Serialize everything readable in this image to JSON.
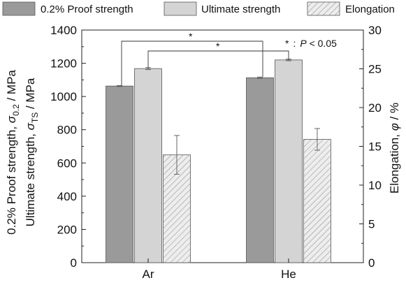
{
  "chart_data": {
    "type": "bar",
    "categories": [
      "Ar",
      "He"
    ],
    "series": [
      {
        "name": "0.2% Proof strength",
        "axis": "left",
        "values": [
          1063,
          1113
        ],
        "errors": [
          3,
          4
        ],
        "color": "#9a9a9a",
        "pattern": "solid"
      },
      {
        "name": "Ultimate strength",
        "axis": "left",
        "values": [
          1168,
          1220
        ],
        "errors": [
          6,
          5
        ],
        "color": "#d4d4d4",
        "pattern": "solid"
      },
      {
        "name": "Elongation",
        "axis": "right",
        "values": [
          13.9,
          15.9
        ],
        "errors": [
          2.5,
          1.4
        ],
        "color": "#ececec",
        "pattern": "hatch"
      }
    ],
    "ylim": [
      0,
      1400
    ],
    "y2lim": [
      0,
      30
    ],
    "yticks": [
      0,
      200,
      400,
      600,
      800,
      1000,
      1200,
      1400
    ],
    "y2ticks": [
      0,
      5,
      10,
      15,
      20,
      25,
      30
    ],
    "ylabel": {
      "line1_prefix": "0.2% Proof strength, ",
      "line1_symbol": "σ",
      "line1_sub": "0.2",
      "line1_suffix": " / MPa",
      "line2_prefix": "Ultimate strength, ",
      "line2_symbol": "σ",
      "line2_sub": "TS",
      "line2_suffix": " / MPa"
    },
    "y2label": {
      "prefix": "Elongation, ",
      "symbol": "φ",
      "suffix": " / %"
    },
    "significance": [
      {
        "series": "0.2% Proof strength",
        "marker": "*"
      },
      {
        "series": "Ultimate strength",
        "marker": "*"
      }
    ],
    "annotation": {
      "star": "*",
      "sep": ":",
      "p_symbol": "P",
      "rest": " < 0.05"
    },
    "legend_position": "top",
    "grid": false
  }
}
